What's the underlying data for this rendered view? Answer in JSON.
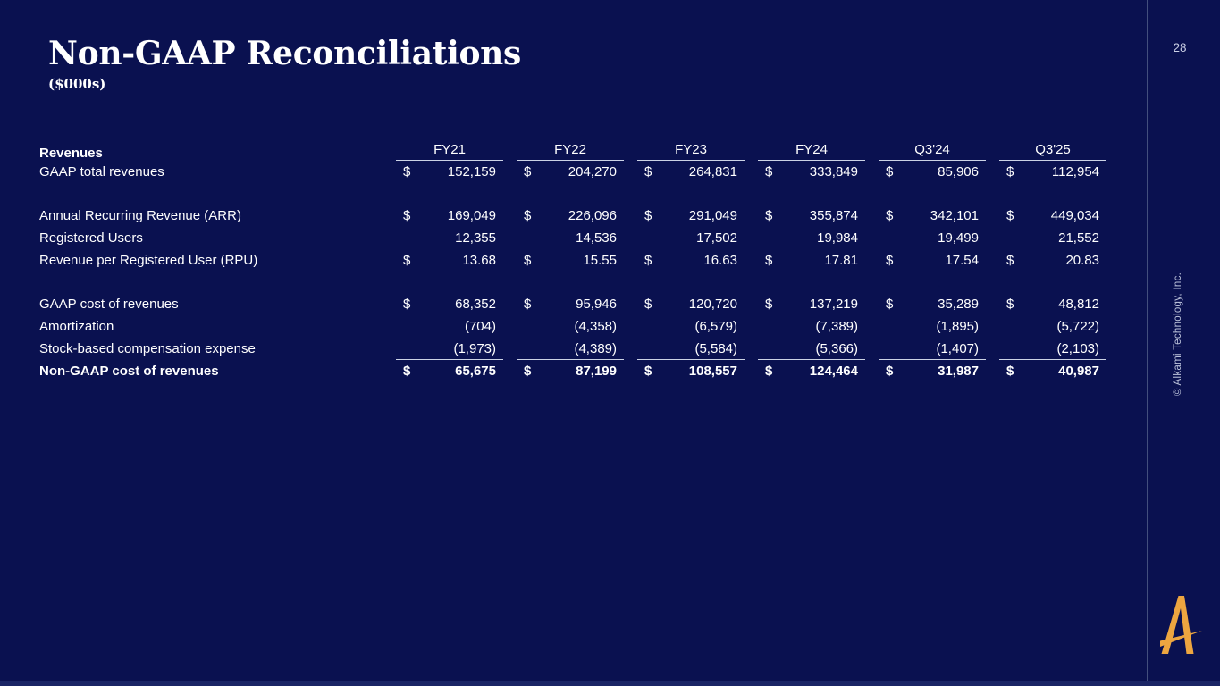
{
  "slide": {
    "title": "Non-GAAP Reconciliations",
    "subtitle": "($000s)",
    "page_number": "28",
    "copyright": "© Alkami Technology, Inc.",
    "logo": "alkami-a-mark"
  },
  "colors": {
    "background": "#0a1150",
    "bottom_bar": "#1a2565",
    "divider_line": "#434f7d",
    "rule_line": "#ccd3e5",
    "text": "#ffffff",
    "muted_text": "#bcc3db",
    "logo_gold": "#eda640"
  },
  "table": {
    "section_label": "Revenues",
    "currency_symbol": "$",
    "columns": [
      "FY21",
      "FY22",
      "FY23",
      "FY24",
      "Q3'24",
      "Q3'25"
    ],
    "rows": [
      {
        "label": "GAAP total revenues",
        "bold": false,
        "currency": true,
        "spacer_before": false,
        "underline": false,
        "values": [
          "152,159",
          "204,270",
          "264,831",
          "333,849",
          "85,906",
          "112,954"
        ]
      },
      {
        "label": "Annual Recurring Revenue (ARR)",
        "bold": false,
        "currency": true,
        "spacer_before": true,
        "underline": false,
        "values": [
          "169,049",
          "226,096",
          "291,049",
          "355,874",
          "342,101",
          "449,034"
        ]
      },
      {
        "label": "Registered Users",
        "bold": false,
        "currency": false,
        "spacer_before": false,
        "underline": false,
        "values": [
          "12,355",
          "14,536",
          "17,502",
          "19,984",
          "19,499",
          "21,552"
        ]
      },
      {
        "label": "Revenue per Registered User (RPU)",
        "bold": false,
        "currency": true,
        "spacer_before": false,
        "underline": false,
        "values": [
          "13.68",
          "15.55",
          "16.63",
          "17.81",
          "17.54",
          "20.83"
        ]
      },
      {
        "label": "GAAP cost of revenues",
        "bold": false,
        "currency": true,
        "spacer_before": true,
        "underline": false,
        "values": [
          "68,352",
          "95,946",
          "120,720",
          "137,219",
          "35,289",
          "48,812"
        ]
      },
      {
        "label": "Amortization",
        "bold": false,
        "currency": false,
        "spacer_before": false,
        "underline": false,
        "values": [
          "(704)",
          "(4,358)",
          "(6,579)",
          "(7,389)",
          "(1,895)",
          "(5,722)"
        ]
      },
      {
        "label": "Stock-based compensation expense",
        "bold": false,
        "currency": false,
        "spacer_before": false,
        "underline": true,
        "values": [
          "(1,973)",
          "(4,389)",
          "(5,584)",
          "(5,366)",
          "(1,407)",
          "(2,103)"
        ]
      },
      {
        "label": "Non-GAAP cost of revenues",
        "bold": true,
        "currency": true,
        "spacer_before": false,
        "underline": false,
        "values": [
          "65,675",
          "87,199",
          "108,557",
          "124,464",
          "31,987",
          "40,987"
        ]
      }
    ]
  }
}
